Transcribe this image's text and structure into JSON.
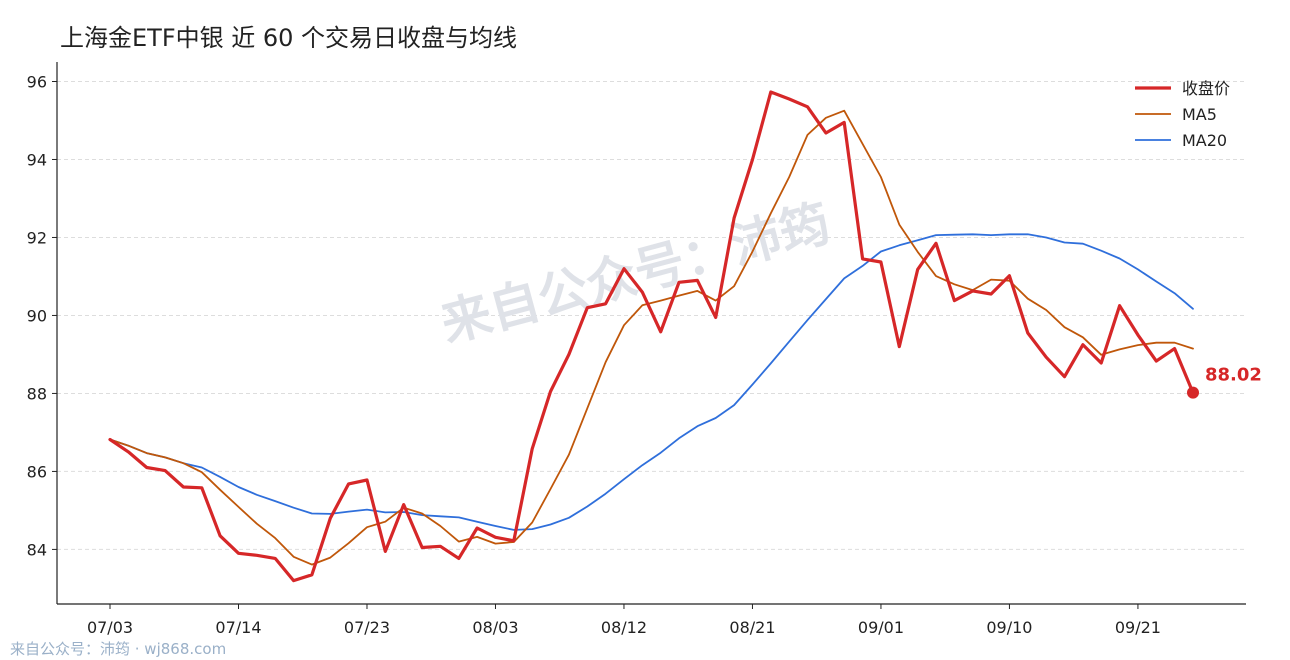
{
  "title": "上海金ETF中银 近 60 个交易日收盘与均线",
  "watermark": "来自公众号：沛筠",
  "footer": "来自公众号：沛筠 · wj868.com",
  "colors": {
    "close": "#d62728",
    "ma5": "#c0570a",
    "ma20": "#2f6fdb",
    "grid": "#dddddd",
    "axis": "#222222",
    "watermark": "#dfe2e8"
  },
  "chart_data": {
    "type": "line",
    "title": "上海金ETF中银 近 60 个交易日收盘与均线",
    "xlabel": "",
    "ylabel": "",
    "ylim": [
      82.6,
      96.5
    ],
    "yticks": [
      84,
      86,
      88,
      90,
      92,
      94,
      96
    ],
    "xtick_labels": [
      "07/03",
      "07/14",
      "07/23",
      "08/03",
      "08/12",
      "08/21",
      "09/01",
      "09/10",
      "09/21"
    ],
    "xtick_index": [
      0,
      7,
      14,
      21,
      28,
      35,
      42,
      49,
      56
    ],
    "n": 60,
    "grid": "y-dashed",
    "legend": "top-right",
    "series": [
      {
        "name": "收盘价",
        "key": "close",
        "values": [
          86.82,
          86.5,
          86.1,
          86.02,
          85.6,
          85.58,
          84.35,
          83.9,
          83.85,
          83.77,
          83.2,
          83.35,
          84.8,
          85.68,
          85.78,
          83.95,
          85.15,
          84.05,
          84.08,
          83.77,
          84.55,
          84.31,
          84.22,
          86.58,
          88.05,
          89.0,
          90.2,
          90.3,
          91.2,
          90.6,
          89.58,
          90.85,
          90.9,
          89.95,
          92.5,
          94.0,
          95.73,
          95.55,
          95.35,
          94.68,
          94.95,
          91.45,
          91.37,
          89.2,
          91.18,
          91.85,
          90.38,
          90.63,
          90.55,
          91.02,
          89.55,
          88.93,
          88.43,
          89.25,
          88.78,
          90.25,
          89.5,
          88.83,
          89.15,
          88.02
        ]
      },
      {
        "name": "MA5",
        "key": "ma5",
        "values": [
          86.82,
          86.66,
          86.47,
          86.36,
          86.21,
          85.98,
          85.53,
          85.09,
          84.66,
          84.29,
          83.81,
          83.61,
          83.79,
          84.16,
          84.57,
          84.71,
          85.07,
          84.92,
          84.6,
          84.2,
          84.32,
          84.15,
          84.19,
          84.69,
          85.55,
          86.43,
          87.62,
          88.8,
          89.75,
          90.26,
          90.38,
          90.51,
          90.63,
          90.38,
          90.75,
          91.64,
          92.62,
          93.55,
          94.63,
          95.07,
          95.25,
          94.4,
          93.55,
          92.33,
          91.63,
          91.01,
          90.8,
          90.65,
          90.92,
          90.89,
          90.43,
          90.14,
          89.7,
          89.44,
          88.99,
          89.13,
          89.24,
          89.3,
          89.3,
          89.15
        ]
      },
      {
        "name": "MA20",
        "key": "ma20",
        "values": [
          86.82,
          86.66,
          86.47,
          86.36,
          86.21,
          86.1,
          85.86,
          85.6,
          85.4,
          85.24,
          85.07,
          84.92,
          84.91,
          84.97,
          85.02,
          84.95,
          84.96,
          84.88,
          84.85,
          84.82,
          84.71,
          84.6,
          84.5,
          84.52,
          84.64,
          84.81,
          85.1,
          85.43,
          85.8,
          86.16,
          86.48,
          86.85,
          87.16,
          87.37,
          87.7,
          88.23,
          88.77,
          89.33,
          89.88,
          90.42,
          90.95,
          91.27,
          91.64,
          91.8,
          91.93,
          92.06,
          92.07,
          92.08,
          92.06,
          92.08,
          92.08,
          92.0,
          91.87,
          91.84,
          91.66,
          91.46,
          91.18,
          90.87,
          90.57,
          90.17
        ]
      }
    ],
    "annotations": [
      {
        "text": "88.02",
        "series": "收盘价",
        "index": 59,
        "value": 88.02
      }
    ]
  }
}
